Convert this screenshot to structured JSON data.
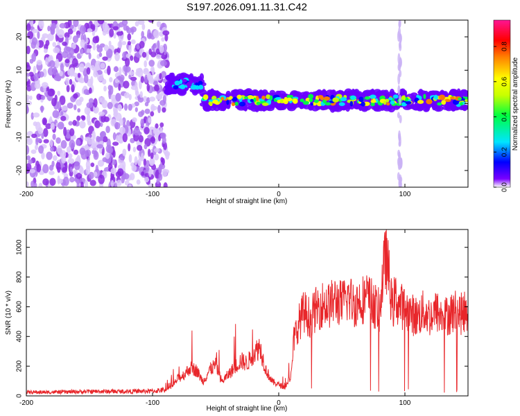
{
  "title": "S197.2026.091.11.31.C42",
  "chart_data": [
    {
      "type": "heatmap",
      "name": "spectrogram",
      "xlabel": "Height of straight line (km)",
      "ylabel": "Frequency (Hz)",
      "xlim": [
        -200,
        150
      ],
      "ylim": [
        -25,
        25
      ],
      "xticks": [
        -200,
        -100,
        0,
        100
      ],
      "yticks": [
        -20,
        -10,
        0,
        10,
        20
      ],
      "colorbar": {
        "label": "Normalized spectral amplitude",
        "range": [
          0,
          0.95
        ],
        "ticks": [
          0.0,
          0.2,
          0.4,
          0.6,
          0.8
        ],
        "tick_labels": [
          "0.0",
          "0.2",
          "0.4",
          "0.6",
          "0.8"
        ],
        "colors": [
          "#ffffff",
          "#7a00ff",
          "#0000ff",
          "#00e5ff",
          "#00ff40",
          "#c8ff00",
          "#ffff00",
          "#ff7f00",
          "#ff0000",
          "#ff1493"
        ]
      },
      "regions": [
        {
          "x_range": [
            -200,
            -88
          ],
          "description": "scattered low-amplitude purple noise across all frequencies",
          "amplitude": 0.05
        },
        {
          "x_range": [
            -88,
            -60
          ],
          "center_frequency": 6,
          "amplitude": 0.3
        },
        {
          "x_range": [
            -60,
            150
          ],
          "center_frequency": 1,
          "amplitude": 0.6
        },
        {
          "x": 96,
          "description": "vertical broadband stripe",
          "amplitude": 0.05
        }
      ]
    },
    {
      "type": "line",
      "name": "snr",
      "xlabel": "Height of straight line (km)",
      "ylabel": "SNR (10 * v/v)",
      "xlim": [
        -200,
        150
      ],
      "ylim": [
        0,
        1120
      ],
      "xticks": [
        -200,
        -100,
        0,
        100
      ],
      "yticks": [
        0,
        200,
        400,
        600,
        800,
        1000
      ],
      "color": "#e8262a",
      "series": [
        {
          "name": "SNR",
          "x": [
            -200,
            -180,
            -160,
            -140,
            -120,
            -100,
            -90,
            -85,
            -80,
            -75,
            -70,
            -65,
            -60,
            -55,
            -50,
            -45,
            -40,
            -35,
            -30,
            -25,
            -20,
            -15,
            -10,
            -5,
            0,
            5,
            10,
            12,
            15,
            20,
            25,
            30,
            35,
            40,
            45,
            50,
            55,
            60,
            65,
            70,
            75,
            80,
            82,
            85,
            88,
            90,
            92,
            95,
            100,
            105,
            110,
            115,
            120,
            125,
            130,
            135,
            140,
            145,
            150
          ],
          "y": [
            25,
            25,
            28,
            30,
            30,
            32,
            40,
            60,
            120,
            150,
            200,
            180,
            100,
            180,
            220,
            100,
            150,
            200,
            250,
            230,
            300,
            350,
            180,
            100,
            80,
            60,
            150,
            400,
            500,
            600,
            550,
            620,
            650,
            640,
            680,
            650,
            700,
            650,
            680,
            700,
            650,
            600,
            800,
            1000,
            800,
            600,
            700,
            650,
            620,
            580,
            560,
            600,
            560,
            600,
            550,
            580,
            600,
            580,
            620
          ]
        }
      ]
    }
  ]
}
